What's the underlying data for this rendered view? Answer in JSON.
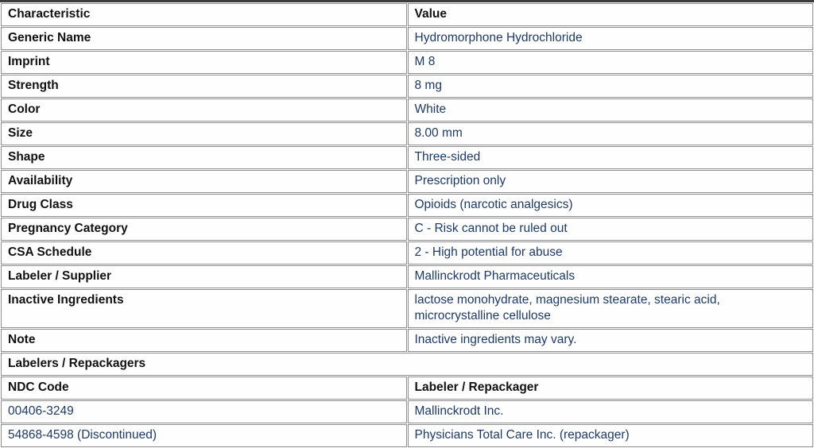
{
  "table": {
    "header": {
      "characteristic": "Characteristic",
      "value": "Value"
    },
    "rows": [
      {
        "label": "Generic Name",
        "value": "Hydromorphone Hydrochloride"
      },
      {
        "label": "Imprint",
        "value": "M 8"
      },
      {
        "label": "Strength",
        "value": "8 mg"
      },
      {
        "label": "Color",
        "value": "White"
      },
      {
        "label": "Size",
        "value": "8.00 mm"
      },
      {
        "label": "Shape",
        "value": "Three-sided"
      },
      {
        "label": "Availability",
        "value": "Prescription only"
      },
      {
        "label": "Drug Class",
        "value": "Opioids (narcotic analgesics)"
      },
      {
        "label": "Pregnancy Category",
        "value": "C - Risk cannot be ruled out"
      },
      {
        "label": "CSA Schedule",
        "value": "2 - High potential for abuse"
      },
      {
        "label": "Labeler / Supplier",
        "value": "Mallinckrodt Pharmaceuticals"
      },
      {
        "label": "Inactive Ingredients",
        "value": "lactose monohydrate, magnesium stearate, stearic acid, microcrystalline cellulose"
      },
      {
        "label": "Note",
        "value": "Inactive ingredients may vary."
      }
    ],
    "labelers_section": {
      "title": "Labelers / Repackagers",
      "subheader": {
        "ndc": "NDC Code",
        "labeler": "Labeler / Repackager"
      },
      "rows": [
        {
          "ndc": "00406-3249",
          "labeler": "Mallinckrodt Inc."
        },
        {
          "ndc": "54868-4598 (Discontinued)",
          "labeler": "Physicians Total Care Inc. (repackager)"
        }
      ]
    }
  },
  "colors": {
    "header_blue": "#9dc9e9",
    "section_blue": "#dcedf8",
    "value_text_navy": "#1e3a66",
    "label_text_black": "#111111",
    "border_gray": "#8f8f8f"
  }
}
